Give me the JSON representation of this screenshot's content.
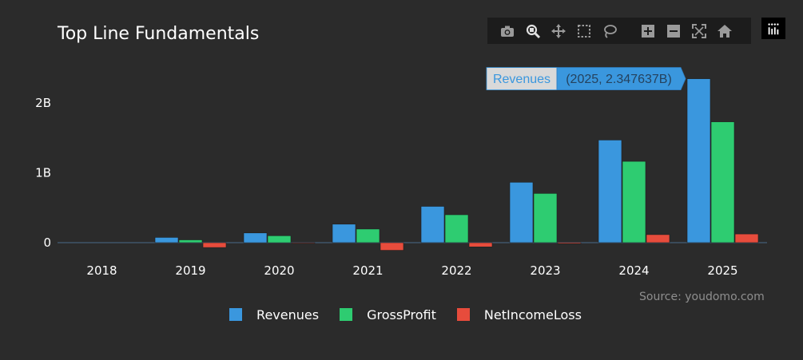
{
  "title": "Top Line Fundamentals",
  "source": "Source: youdomo.com",
  "modebar": {
    "buttons": [
      "camera-icon",
      "zoom-icon",
      "pan-icon",
      "box-select-icon",
      "lasso-select-icon",
      "zoom-in-icon",
      "zoom-out-icon",
      "autoscale-icon",
      "reset-axes-icon"
    ]
  },
  "tooltip": {
    "series": "Revenues",
    "text": "(2025, 2.347637B)"
  },
  "colors": {
    "background": "#2b2b2b",
    "revenues": "#3a97de",
    "gross_profit": "#2ecc71",
    "net_income_loss": "#e74c3c",
    "axis_text": "#ffffff"
  },
  "chart_data": {
    "type": "bar",
    "categories": [
      "2018",
      "2019",
      "2020",
      "2021",
      "2022",
      "2023",
      "2024",
      "2025"
    ],
    "series": [
      {
        "name": "Revenues",
        "color": "#3a97de",
        "values": [
          0,
          0.075,
          0.14,
          0.265,
          0.52,
          0.865,
          1.47,
          2.347637
        ]
      },
      {
        "name": "GrossProfit",
        "color": "#2ecc71",
        "values": [
          0,
          0.04,
          0.1,
          0.195,
          0.4,
          0.705,
          1.165,
          1.73
        ]
      },
      {
        "name": "NetIncomeLoss",
        "color": "#e74c3c",
        "values": [
          0,
          -0.07,
          -0.01,
          -0.11,
          -0.06,
          -0.015,
          0.115,
          0.125
        ]
      }
    ],
    "yticks": [
      0,
      1,
      2
    ],
    "ytick_labels": [
      "0",
      "1B",
      "2B"
    ],
    "ylim": [
      -0.15,
      2.55
    ],
    "grid": false,
    "legend_position": "bottom"
  }
}
